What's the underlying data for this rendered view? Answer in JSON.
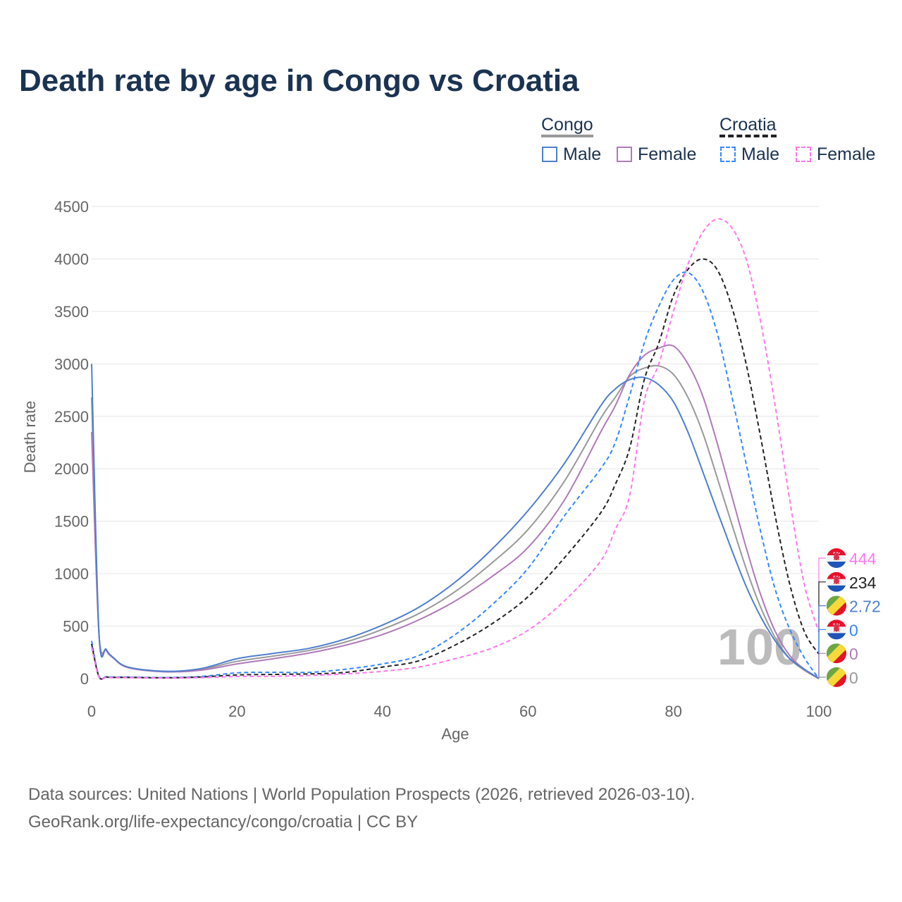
{
  "title": "Death rate by age in Congo vs Croatia",
  "legend": {
    "groups": [
      {
        "name": "Congo",
        "items": [
          "Male",
          "Female"
        ]
      },
      {
        "name": "Croatia",
        "items": [
          "Male",
          "Female"
        ]
      }
    ]
  },
  "source": {
    "line1": "Data sources: United Nations | World Population Prospects (2026, retrieved 2026-03-10).",
    "line2": "GeoRank.org/life-expectancy/congo/croatia | CC BY"
  },
  "watermark": "100",
  "chart_data": {
    "type": "line",
    "title": "Death rate by age in Congo vs Croatia",
    "xlabel": "Age",
    "ylabel": "Death rate",
    "xlim": [
      0,
      100
    ],
    "ylim": [
      0,
      4500
    ],
    "xticks": [
      "0",
      "20",
      "40",
      "60",
      "80",
      "100"
    ],
    "yticks": [
      "0",
      "500",
      "1000",
      "1500",
      "2000",
      "2500",
      "3000",
      "3500",
      "4000",
      "4500"
    ],
    "grid": true,
    "legend_position": "top-right",
    "x": [
      0,
      1,
      2,
      3,
      5,
      10,
      15,
      20,
      25,
      30,
      35,
      40,
      45,
      50,
      55,
      60,
      65,
      70,
      72,
      74,
      76,
      78,
      80,
      82,
      84,
      86,
      88,
      90,
      92,
      94,
      96,
      98,
      100
    ],
    "series": [
      {
        "name": "Congo Total",
        "color": "#999999",
        "dash": false,
        "end_label": "0",
        "flag": "congo",
        "values": [
          2680,
          440,
          275,
          198,
          108,
          68,
          88,
          165,
          215,
          270,
          350,
          470,
          620,
          830,
          1100,
          1420,
          1880,
          2480,
          2680,
          2880,
          2960,
          2980,
          2900,
          2680,
          2350,
          1920,
          1480,
          1050,
          680,
          390,
          190,
          80,
          0
        ]
      },
      {
        "name": "Congo Female",
        "color": "#b07ab8",
        "dash": false,
        "end_label": "0",
        "flag": "congo",
        "values": [
          2350,
          440,
          270,
          195,
          105,
          65,
          80,
          140,
          190,
          245,
          320,
          420,
          560,
          740,
          970,
          1250,
          1700,
          2350,
          2600,
          2900,
          3080,
          3150,
          3170,
          3000,
          2700,
          2250,
          1750,
          1250,
          800,
          450,
          220,
          90,
          0
        ]
      },
      {
        "name": "Congo Male",
        "color": "#4f7fcc",
        "dash": false,
        "end_label": "2.72",
        "flag": "congo",
        "values": [
          3000,
          450,
          280,
          200,
          110,
          70,
          95,
          190,
          240,
          290,
          380,
          510,
          680,
          920,
          1230,
          1600,
          2050,
          2600,
          2760,
          2850,
          2870,
          2800,
          2640,
          2350,
          1980,
          1600,
          1230,
          880,
          590,
          360,
          190,
          90,
          3
        ]
      },
      {
        "name": "Croatia Male",
        "color": "#3388ff",
        "dash": true,
        "end_label": "0",
        "flag": "croatia",
        "values": [
          360,
          25,
          18,
          15,
          15,
          10,
          20,
          55,
          60,
          60,
          90,
          140,
          220,
          420,
          700,
          1050,
          1550,
          2000,
          2250,
          2700,
          3200,
          3550,
          3800,
          3870,
          3700,
          3300,
          2700,
          2050,
          1400,
          850,
          470,
          200,
          0
        ]
      },
      {
        "name": "Croatia Total",
        "color": "#222222",
        "dash": true,
        "end_label": "234",
        "flag": "croatia",
        "values": [
          330,
          20,
          15,
          12,
          12,
          8,
          15,
          35,
          40,
          45,
          60,
          110,
          170,
          320,
          520,
          780,
          1150,
          1580,
          1850,
          2200,
          2850,
          3200,
          3650,
          3900,
          4000,
          3900,
          3550,
          3000,
          2300,
          1550,
          900,
          450,
          234
        ]
      },
      {
        "name": "Croatia Female",
        "color": "#ff77ee",
        "dash": true,
        "end_label": "444",
        "flag": "croatia",
        "values": [
          300,
          15,
          12,
          10,
          10,
          6,
          10,
          20,
          22,
          30,
          45,
          70,
          110,
          190,
          290,
          460,
          740,
          1120,
          1420,
          1750,
          2650,
          3000,
          3500,
          3950,
          4250,
          4380,
          4300,
          4000,
          3400,
          2600,
          1700,
          900,
          444
        ]
      }
    ]
  }
}
